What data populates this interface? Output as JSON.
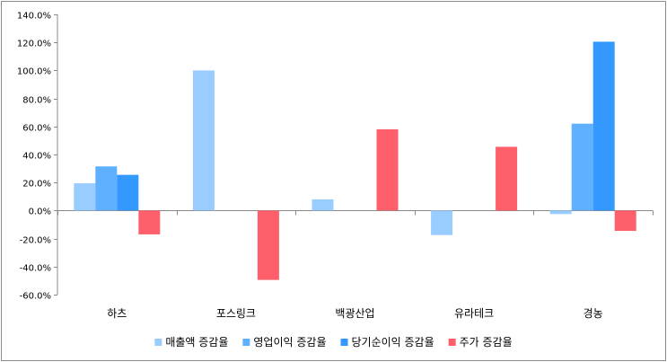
{
  "chart_data": {
    "type": "bar",
    "title": "",
    "xlabel": "",
    "ylabel": "",
    "categories": [
      "하츠",
      "포스링크",
      "백광산업",
      "유라테크",
      "경농"
    ],
    "series": [
      {
        "name": "매출액 증감율",
        "color": "#99ccff",
        "values": [
          19.5,
          100.0,
          8.0,
          -17.5,
          -2.5
        ]
      },
      {
        "name": "영업이익 증감율",
        "color": "#5fb0ff",
        "values": [
          31.5,
          null,
          null,
          null,
          62.0
        ]
      },
      {
        "name": "당기순이익 증감율",
        "color": "#3399ff",
        "values": [
          25.5,
          null,
          null,
          null,
          120.5
        ]
      },
      {
        "name": "주가 증감율",
        "color": "#ff5f6b",
        "values": [
          -17.0,
          -49.5,
          58.0,
          45.5,
          -14.5
        ]
      }
    ],
    "ylim": [
      -60,
      140
    ],
    "yticks": [
      -60,
      -40,
      -20,
      0,
      20,
      40,
      60,
      80,
      100,
      120,
      140
    ],
    "ytick_labels": [
      "-60.0%",
      "-40.0%",
      "-20.0%",
      "0.0%",
      "20.0%",
      "40.0%",
      "60.0%",
      "80.0%",
      "100.0%",
      "120.0%",
      "140.0%"
    ],
    "grid": false,
    "legend_position": "bottom"
  }
}
